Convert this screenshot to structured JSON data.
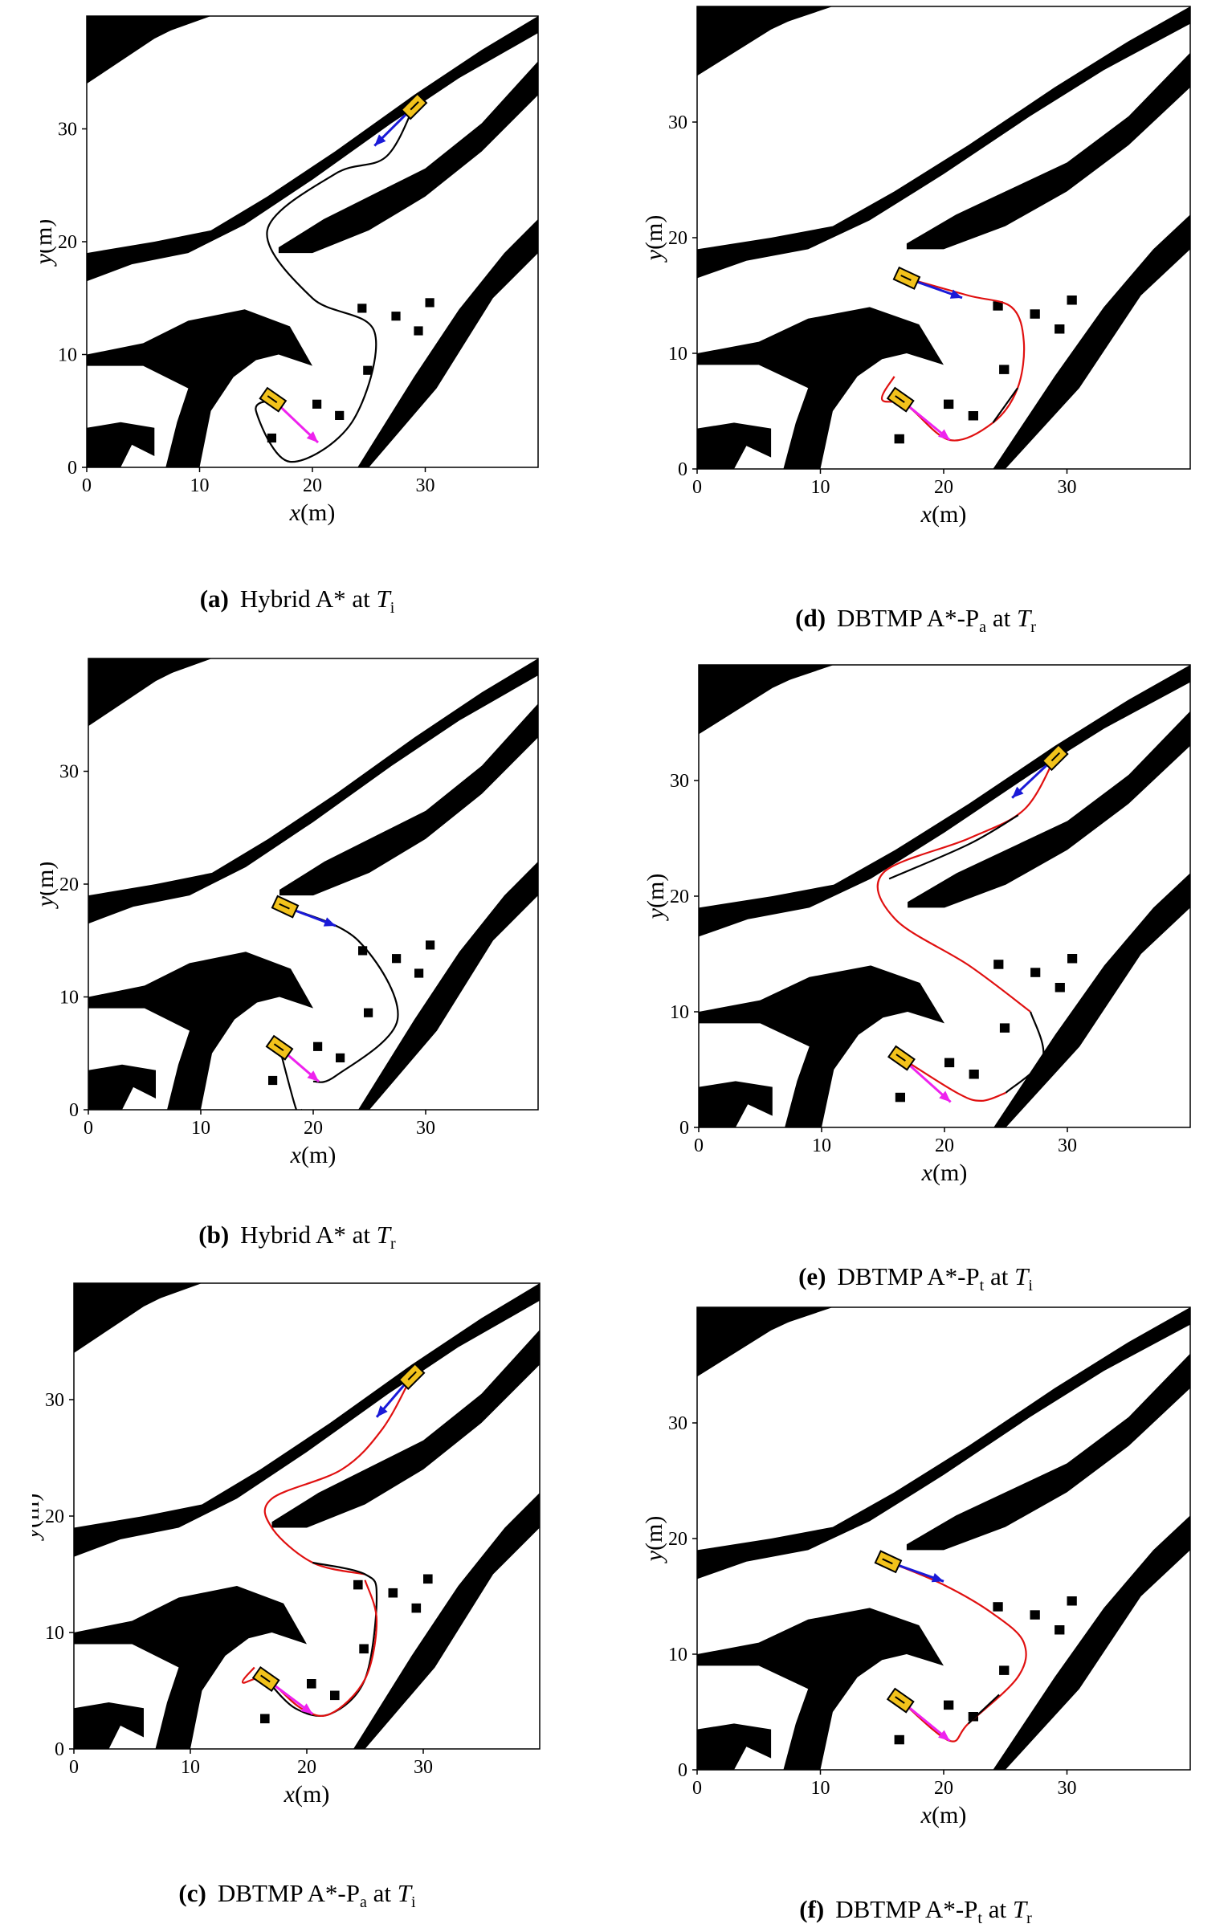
{
  "figure": {
    "x_axis": {
      "var": "x",
      "unit": "(m)",
      "ticks": [
        "0",
        "10",
        "20",
        "30"
      ]
    },
    "y_axis": {
      "var": "y",
      "unit": "(m)",
      "ticks": [
        "0",
        "10",
        "20",
        "30"
      ]
    },
    "colors": {
      "obstacle": "#000000",
      "path_old": "#000000",
      "path_new": "#e01010",
      "start_arrow": "#1a1ad8",
      "goal_arrow": "#ee22ee",
      "vehicle_fill": "#f2c21b"
    }
  },
  "panels": [
    {
      "id": "a",
      "label": "(a)",
      "method": "Hybrid A*",
      "tsym": "T",
      "tsub": "i"
    },
    {
      "id": "b",
      "label": "(b)",
      "method": "Hybrid A*",
      "tsym": "T",
      "tsub": "r"
    },
    {
      "id": "c",
      "label": "(c)",
      "method": "DBTMP A*-P",
      "msub": "a",
      "tsym": "T",
      "tsub": "i"
    },
    {
      "id": "d",
      "label": "(d)",
      "method": "DBTMP A*-P",
      "msub": "a",
      "tsym": "T",
      "tsub": "r"
    },
    {
      "id": "e",
      "label": "(e)",
      "method": "DBTMP A*-P",
      "msub": "t",
      "tsym": "T",
      "tsub": "i"
    },
    {
      "id": "f",
      "label": "(f)",
      "method": "DBTMP A*-P",
      "msub": "t",
      "tsym": "T",
      "tsub": "r"
    }
  ],
  "chart_data": [
    {
      "type": "scatter",
      "panel": "a",
      "xlim": [
        0,
        40
      ],
      "ylim": [
        0,
        40
      ],
      "vehicles": [
        {
          "x": 29,
          "y": 32,
          "angle": 225
        },
        {
          "x": 16.5,
          "y": 6,
          "angle": -35
        }
      ],
      "arrows": [
        {
          "from": [
            29,
            32
          ],
          "to": [
            25.5,
            28.5
          ],
          "color": "start"
        },
        {
          "from": [
            16.5,
            6
          ],
          "to": [
            20.5,
            2.2
          ],
          "color": "goal"
        }
      ],
      "paths": [
        {
          "style": "old",
          "points": [
            [
              29,
              32
            ],
            [
              26.5,
              27.5
            ],
            [
              22,
              26
            ],
            [
              16,
              21
            ],
            [
              20,
              15
            ],
            [
              25.5,
              12
            ],
            [
              23.5,
              4
            ],
            [
              18,
              0.5
            ],
            [
              15,
              5
            ],
            [
              16.5,
              6
            ]
          ]
        }
      ]
    },
    {
      "type": "scatter",
      "panel": "b",
      "xlim": [
        0,
        40
      ],
      "ylim": [
        0,
        40
      ],
      "vehicles": [
        {
          "x": 17.5,
          "y": 18,
          "angle": -25
        },
        {
          "x": 17,
          "y": 5.5,
          "angle": -35
        }
      ],
      "arrows": [
        {
          "from": [
            17.5,
            18
          ],
          "to": [
            22,
            16.3
          ],
          "color": "start"
        },
        {
          "from": [
            17,
            5.5
          ],
          "to": [
            20.5,
            2.5
          ],
          "color": "goal"
        }
      ],
      "paths": [
        {
          "style": "old",
          "points": [
            [
              17.5,
              18
            ],
            [
              24,
              15
            ],
            [
              27.5,
              8
            ],
            [
              22,
              3
            ],
            [
              20,
              2.5
            ]
          ]
        },
        {
          "style": "old",
          "points": [
            [
              17,
              5.5
            ],
            [
              18.5,
              0
            ],
            [
              19,
              0
            ]
          ]
        }
      ]
    },
    {
      "type": "scatter",
      "panel": "c",
      "xlim": [
        0,
        40
      ],
      "ylim": [
        0,
        40
      ],
      "vehicles": [
        {
          "x": 29,
          "y": 32,
          "angle": 225
        },
        {
          "x": 16.5,
          "y": 6,
          "angle": -35
        }
      ],
      "arrows": [
        {
          "from": [
            29,
            32
          ],
          "to": [
            26,
            28.5
          ],
          "color": "start"
        },
        {
          "from": [
            16.5,
            6
          ],
          "to": [
            20.5,
            3
          ],
          "color": "goal"
        }
      ],
      "paths": [
        {
          "style": "new",
          "points": [
            [
              29,
              32
            ],
            [
              26.5,
              27.5
            ],
            [
              23,
              24
            ],
            [
              17,
              21.5
            ],
            [
              17,
              19
            ],
            [
              20.5,
              16
            ],
            [
              25,
              15
            ]
          ]
        },
        {
          "style": "old",
          "points": [
            [
              20.5,
              16
            ],
            [
              25,
              15
            ],
            [
              26,
              13
            ],
            [
              25,
              6
            ],
            [
              22,
              3
            ],
            [
              19,
              3.5
            ],
            [
              16.5,
              6
            ]
          ]
        },
        {
          "style": "new",
          "points": [
            [
              25,
              14.5
            ],
            [
              26,
              11
            ],
            [
              25,
              6
            ],
            [
              22,
              3
            ],
            [
              19.5,
              3.5
            ],
            [
              16.5,
              6
            ],
            [
              14.5,
              5.7
            ],
            [
              15.5,
              7
            ]
          ]
        }
      ]
    },
    {
      "type": "scatter",
      "panel": "d",
      "xlim": [
        0,
        40
      ],
      "ylim": [
        0,
        40
      ],
      "vehicles": [
        {
          "x": 17,
          "y": 16.5,
          "angle": -25
        },
        {
          "x": 16.5,
          "y": 6,
          "angle": -35
        }
      ],
      "arrows": [
        {
          "from": [
            17,
            16.5
          ],
          "to": [
            21.5,
            14.8
          ],
          "color": "start"
        },
        {
          "from": [
            16.5,
            6
          ],
          "to": [
            20.5,
            2.5
          ],
          "color": "goal"
        }
      ],
      "paths": [
        {
          "style": "new",
          "points": [
            [
              17,
              16.5
            ],
            [
              22,
              15
            ],
            [
              25.5,
              14
            ],
            [
              26.5,
              11
            ],
            [
              26,
              7
            ],
            [
              24,
              4
            ],
            [
              20.5,
              2.5
            ],
            [
              17,
              5.5
            ],
            [
              15,
              6
            ],
            [
              16,
              8
            ]
          ]
        },
        {
          "style": "old",
          "points": [
            [
              26,
              7
            ],
            [
              24,
              4
            ]
          ]
        }
      ]
    },
    {
      "type": "scatter",
      "panel": "e",
      "xlim": [
        0,
        40
      ],
      "ylim": [
        0,
        40
      ],
      "vehicles": [
        {
          "x": 29,
          "y": 32,
          "angle": 225
        },
        {
          "x": 16.5,
          "y": 6,
          "angle": -35
        }
      ],
      "arrows": [
        {
          "from": [
            29,
            32
          ],
          "to": [
            25.5,
            28.5
          ],
          "color": "start"
        },
        {
          "from": [
            16.5,
            6
          ],
          "to": [
            20.5,
            2.2
          ],
          "color": "goal"
        }
      ],
      "paths": [
        {
          "style": "new",
          "points": [
            [
              29,
              32
            ],
            [
              26.5,
              27.5
            ],
            [
              22,
              25
            ],
            [
              15,
              22
            ],
            [
              16,
              18
            ],
            [
              22,
              14
            ],
            [
              27,
              10
            ]
          ]
        },
        {
          "style": "old",
          "points": [
            [
              26,
              27
            ],
            [
              22,
              24.5
            ],
            [
              15.5,
              21.5
            ]
          ]
        },
        {
          "style": "old",
          "points": [
            [
              27,
              10
            ],
            [
              28,
              6
            ],
            [
              25,
              3
            ]
          ]
        },
        {
          "style": "new",
          "points": [
            [
              25,
              3
            ],
            [
              23,
              2.3
            ],
            [
              21,
              3
            ],
            [
              16.5,
              6
            ]
          ]
        }
      ]
    },
    {
      "type": "scatter",
      "panel": "f",
      "xlim": [
        0,
        40
      ],
      "ylim": [
        0,
        40
      ],
      "vehicles": [
        {
          "x": 15.5,
          "y": 18,
          "angle": -25
        },
        {
          "x": 16.5,
          "y": 6,
          "angle": -35
        }
      ],
      "arrows": [
        {
          "from": [
            15.5,
            18
          ],
          "to": [
            20,
            16.3
          ],
          "color": "start"
        },
        {
          "from": [
            16.5,
            6
          ],
          "to": [
            20.5,
            2.5
          ],
          "color": "goal"
        }
      ],
      "paths": [
        {
          "style": "new",
          "points": [
            [
              15.5,
              18
            ],
            [
              20,
              16
            ],
            [
              24,
              13.5
            ],
            [
              26.5,
              11
            ],
            [
              26,
              8
            ],
            [
              22,
              4
            ],
            [
              20.5,
              2.5
            ],
            [
              17,
              5.5
            ]
          ]
        },
        {
          "style": "old",
          "points": [
            [
              24.5,
              6.5
            ],
            [
              22,
              4
            ]
          ]
        }
      ]
    }
  ]
}
